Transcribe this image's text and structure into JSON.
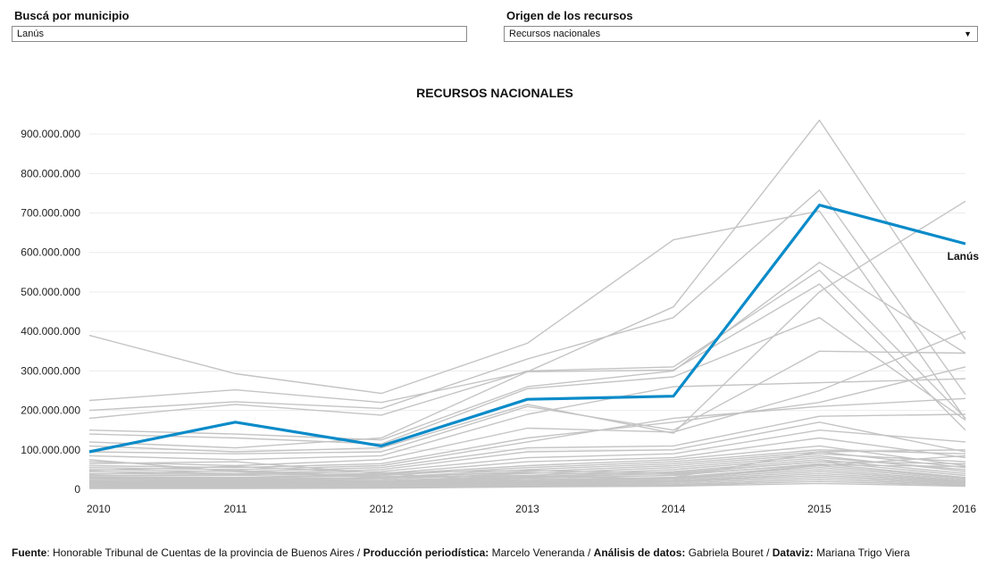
{
  "controls": {
    "search_label": "Buscá por municipio",
    "search_value": "Lanús",
    "origin_label": "Origen de los recursos",
    "origin_value": "Recursos nacionales"
  },
  "chart_data": {
    "type": "line",
    "title": "RECURSOS NACIONALES",
    "x": [
      "2010",
      "2011",
      "2012",
      "2013",
      "2014",
      "2015",
      "2016"
    ],
    "y_ticks": [
      "0",
      "100.000.000",
      "200.000.000",
      "300.000.000",
      "400.000.000",
      "500.000.000",
      "600.000.000",
      "700.000.000",
      "800.000.000",
      "900.000.000"
    ],
    "ylim": [
      0,
      950000000
    ],
    "grid": true,
    "highlight": {
      "name": "Lanús",
      "color": "#0a8bc9",
      "values": [
        95000000,
        170000000,
        110000000,
        228000000,
        236000000,
        720000000,
        622000000
      ]
    },
    "background_color": "#c4c4c4",
    "background_series": [
      [
        390000000,
        293000000,
        243000000,
        370000000,
        632000000,
        705000000,
        178000000
      ],
      [
        225000000,
        252000000,
        220000000,
        298000000,
        462000000,
        935000000,
        380000000
      ],
      [
        200000000,
        222000000,
        205000000,
        330000000,
        435000000,
        758000000,
        240000000
      ],
      [
        180000000,
        215000000,
        188000000,
        300000000,
        310000000,
        555000000,
        180000000
      ],
      [
        150000000,
        140000000,
        125000000,
        260000000,
        300000000,
        575000000,
        345000000
      ],
      [
        120000000,
        105000000,
        130000000,
        298000000,
        302000000,
        520000000,
        150000000
      ],
      [
        140000000,
        130000000,
        115000000,
        255000000,
        285000000,
        435000000,
        175000000
      ],
      [
        110000000,
        95000000,
        105000000,
        215000000,
        142000000,
        500000000,
        730000000
      ],
      [
        95000000,
        90000000,
        95000000,
        210000000,
        150000000,
        350000000,
        345000000
      ],
      [
        85000000,
        75000000,
        85000000,
        190000000,
        260000000,
        270000000,
        280000000
      ],
      [
        70000000,
        60000000,
        75000000,
        155000000,
        145000000,
        250000000,
        400000000
      ],
      [
        60000000,
        55000000,
        65000000,
        130000000,
        170000000,
        220000000,
        310000000
      ],
      [
        55000000,
        50000000,
        60000000,
        120000000,
        180000000,
        210000000,
        230000000
      ],
      [
        50000000,
        45000000,
        55000000,
        105000000,
        110000000,
        185000000,
        190000000
      ],
      [
        45000000,
        40000000,
        50000000,
        95000000,
        100000000,
        170000000,
        95000000
      ],
      [
        40000000,
        38000000,
        45000000,
        80000000,
        90000000,
        150000000,
        120000000
      ],
      [
        35000000,
        35000000,
        40000000,
        70000000,
        80000000,
        130000000,
        80000000
      ],
      [
        32000000,
        30000000,
        38000000,
        60000000,
        75000000,
        110000000,
        60000000
      ],
      [
        30000000,
        28000000,
        35000000,
        55000000,
        70000000,
        100000000,
        90000000
      ],
      [
        28000000,
        26000000,
        30000000,
        50000000,
        65000000,
        95000000,
        55000000
      ],
      [
        25000000,
        24000000,
        28000000,
        45000000,
        60000000,
        90000000,
        70000000
      ],
      [
        22000000,
        22000000,
        25000000,
        40000000,
        55000000,
        85000000,
        45000000
      ],
      [
        20000000,
        20000000,
        22000000,
        35000000,
        50000000,
        80000000,
        50000000
      ],
      [
        18000000,
        18000000,
        20000000,
        32000000,
        45000000,
        75000000,
        40000000
      ],
      [
        16000000,
        16000000,
        18000000,
        30000000,
        40000000,
        70000000,
        35000000
      ],
      [
        14000000,
        14000000,
        16000000,
        28000000,
        35000000,
        65000000,
        30000000
      ],
      [
        12000000,
        12000000,
        14000000,
        25000000,
        30000000,
        60000000,
        28000000
      ],
      [
        10000000,
        10000000,
        12000000,
        22000000,
        28000000,
        55000000,
        25000000
      ],
      [
        9000000,
        9000000,
        10000000,
        20000000,
        25000000,
        50000000,
        22000000
      ],
      [
        8000000,
        8000000,
        9000000,
        18000000,
        22000000,
        45000000,
        20000000
      ],
      [
        7000000,
        7000000,
        8000000,
        16000000,
        20000000,
        40000000,
        18000000
      ],
      [
        6000000,
        6000000,
        7000000,
        14000000,
        18000000,
        35000000,
        16000000
      ],
      [
        5000000,
        5000000,
        6000000,
        12000000,
        15000000,
        30000000,
        14000000
      ],
      [
        4000000,
        4000000,
        5000000,
        10000000,
        12000000,
        25000000,
        12000000
      ],
      [
        3000000,
        3000000,
        4000000,
        8000000,
        10000000,
        20000000,
        10000000
      ],
      [
        2000000,
        2000000,
        3000000,
        6000000,
        8000000,
        15000000,
        8000000
      ],
      [
        65000000,
        70000000,
        40000000,
        20000000,
        30000000,
        95000000,
        100000000
      ],
      [
        75000000,
        45000000,
        30000000,
        35000000,
        25000000,
        60000000,
        85000000
      ],
      [
        48000000,
        58000000,
        42000000,
        48000000,
        42000000,
        70000000,
        65000000
      ],
      [
        38000000,
        48000000,
        32000000,
        42000000,
        38000000,
        62000000,
        58000000
      ]
    ]
  },
  "footer": {
    "source_label": "Fuente",
    "source_text": ": Honorable Tribunal de Cuentas de la provincia de Buenos Aires / ",
    "production_label": "Producción periodística:",
    "production_text": " Marcelo Veneranda / ",
    "analysis_label": "Análisis de datos:",
    "analysis_text": " Gabriela Bouret / ",
    "dataviz_label": "Dataviz:",
    "dataviz_text": " Mariana Trigo Viera"
  }
}
